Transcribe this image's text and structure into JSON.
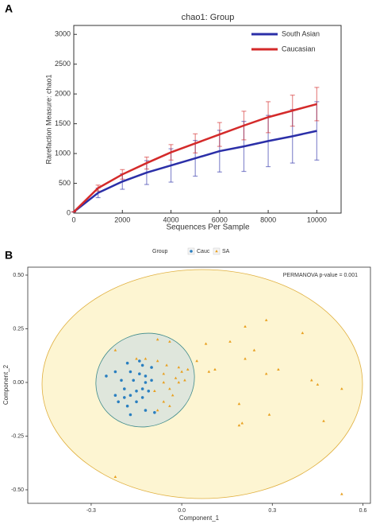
{
  "chart_data": [
    {
      "panel": "A",
      "type": "line",
      "title": "chao1: Group",
      "xlabel": "Sequences Per Sample",
      "ylabel": "Rarefaction Measure: chao1",
      "x": [
        0,
        1000,
        2000,
        3000,
        4000,
        5000,
        6000,
        7000,
        8000,
        9000,
        10000
      ],
      "series": [
        {
          "name": "South Asian",
          "color": "#2b2fa8",
          "values": [
            20,
            340,
            530,
            680,
            800,
            920,
            1040,
            1120,
            1210,
            1290,
            1380
          ],
          "errors": [
            0,
            80,
            130,
            200,
            280,
            300,
            350,
            420,
            430,
            450,
            490
          ]
        },
        {
          "name": "Caucasian",
          "color": "#d42a2a",
          "values": [
            20,
            420,
            650,
            840,
            1020,
            1170,
            1320,
            1470,
            1610,
            1720,
            1830
          ],
          "errors": [
            0,
            50,
            80,
            100,
            130,
            160,
            200,
            240,
            260,
            260,
            280
          ]
        }
      ],
      "xlim": [
        0,
        11000
      ],
      "xticks": [
        0,
        2000,
        4000,
        6000,
        8000,
        10000
      ],
      "ylim": [
        0,
        3150
      ],
      "yticks": [
        0,
        500,
        1000,
        1500,
        2000,
        2500,
        3000
      ],
      "legend": "upper right"
    },
    {
      "panel": "B",
      "type": "scatter",
      "legend_title": "Group",
      "annotation": "PERMANOVA p-value = 0.001",
      "xlabel": "Component_1",
      "ylabel": "Component_2",
      "series": [
        {
          "name": "Cauc",
          "color": "#2a7fc0",
          "marker": "circle",
          "x": [
            -0.25,
            -0.22,
            -0.2,
            -0.18,
            -0.17,
            -0.16,
            -0.14,
            -0.13,
            -0.12,
            -0.12,
            -0.13,
            -0.15,
            -0.17,
            -0.19,
            -0.21,
            -0.22,
            -0.19,
            -0.1,
            -0.11,
            -0.13,
            -0.15,
            -0.17,
            -0.12,
            -0.09,
            -0.18,
            -0.14,
            -0.1
          ],
          "y": [
            0.03,
            0.05,
            0.01,
            0.09,
            0.05,
            0.01,
            0.04,
            0.08,
            0.03,
            0,
            -0.03,
            -0.04,
            -0.06,
            -0.07,
            -0.09,
            -0.06,
            -0.03,
            0.01,
            -0.04,
            -0.07,
            -0.09,
            -0.15,
            -0.13,
            -0.14,
            -0.11,
            0.1,
            0.07
          ]
        },
        {
          "name": "SA",
          "color": "#e8a020",
          "marker": "triangle",
          "x": [
            -0.22,
            -0.15,
            -0.12,
            -0.08,
            -0.05,
            -0.04,
            -0.08,
            -0.06,
            -0.04,
            -0.01,
            0,
            0.02,
            0.01,
            -0.01,
            -0.03,
            -0.06,
            -0.04,
            -0.08,
            -0.09,
            -0.06,
            -0.02,
            0.08,
            0.16,
            0.09,
            0.11,
            0.05,
            0.21,
            0.28,
            0.21,
            0.24,
            0.28,
            0.32,
            0.4,
            0.43,
            0.45,
            0.53,
            0.47,
            0.29,
            0.19,
            0.19,
            0.2,
            -0.22,
            0.53
          ],
          "y": [
            0.15,
            0.11,
            0.11,
            0.1,
            0.08,
            0.19,
            0.2,
            0.04,
            -0.03,
            0.07,
            0.05,
            0.06,
            0.01,
            0,
            -0.06,
            -0.09,
            -0.11,
            -0.13,
            -0.04,
            0,
            0.02,
            0.18,
            0.19,
            0.05,
            0.06,
            0.1,
            0.26,
            0.29,
            0.11,
            0.15,
            0.04,
            0.06,
            0.23,
            0.01,
            -0.01,
            -0.03,
            -0.18,
            -0.15,
            -0.1,
            -0.2,
            -0.19,
            -0.44,
            -0.52
          ]
        }
      ],
      "xlim": [
        -0.51,
        0.625
      ],
      "xticks": [
        -0.3,
        {
          "value": 0,
          "label": "0.0"
        },
        0.3,
        0.6
      ],
      "ylim": [
        -0.563,
        0.537
      ],
      "yticks": [
        {
          "value": 0.5,
          "label": "0.50"
        },
        0.25,
        {
          "value": 0,
          "label": "0.00"
        },
        -0.25,
        {
          "value": -0.5,
          "label": "-0.50"
        }
      ],
      "legend": "top"
    }
  ]
}
